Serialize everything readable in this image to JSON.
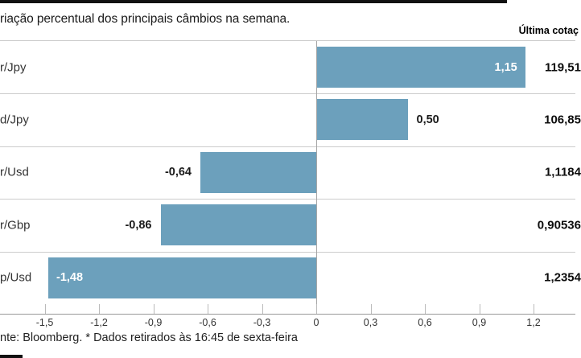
{
  "header": {
    "title": "riação percentual dos principais câmbios na semana.",
    "last_quote_column_label": "Última cotaç"
  },
  "chart_data": {
    "type": "bar",
    "orientation": "horizontal",
    "title": "riação percentual dos principais câmbios na semana.",
    "categories": [
      "r/Jpy",
      "d/Jpy",
      "r/Usd",
      "r/Gbp",
      "p/Usd"
    ],
    "values": [
      1.15,
      0.5,
      -0.64,
      -0.86,
      -1.48
    ],
    "value_labels": [
      "1,15",
      "0,50",
      "-0,64",
      "-0,86",
      "-1,48"
    ],
    "last_quotes": [
      "119,51",
      "106,85",
      "1,1184",
      "0,90536",
      "1,2354"
    ],
    "last_quote_header": "Última cotaç",
    "x_ticks": [
      {
        "value": -1.5,
        "label": "-1,5"
      },
      {
        "value": -1.2,
        "label": "-1,2"
      },
      {
        "value": -0.9,
        "label": "-0,9"
      },
      {
        "value": -0.6,
        "label": "-0,6"
      },
      {
        "value": -0.3,
        "label": "-0,3"
      },
      {
        "value": 0,
        "label": "0"
      },
      {
        "value": 0.3,
        "label": "0,3"
      },
      {
        "value": 0.6,
        "label": "0,6"
      },
      {
        "value": 0.9,
        "label": "0,9"
      },
      {
        "value": 1.2,
        "label": "1,2"
      }
    ],
    "xlim": [
      -1.75,
      1.43
    ],
    "grid": true,
    "legend": false,
    "colors": {
      "bar": "#6CA0BC",
      "row_separator": "#CCCCCC",
      "axis_line": "#999999",
      "zero_line": "#A6A6A6",
      "frame": "#111111"
    }
  },
  "footer": {
    "source_note": "nte: Bloomberg.  * Dados retirados às 16:45 de sexta-feira"
  }
}
